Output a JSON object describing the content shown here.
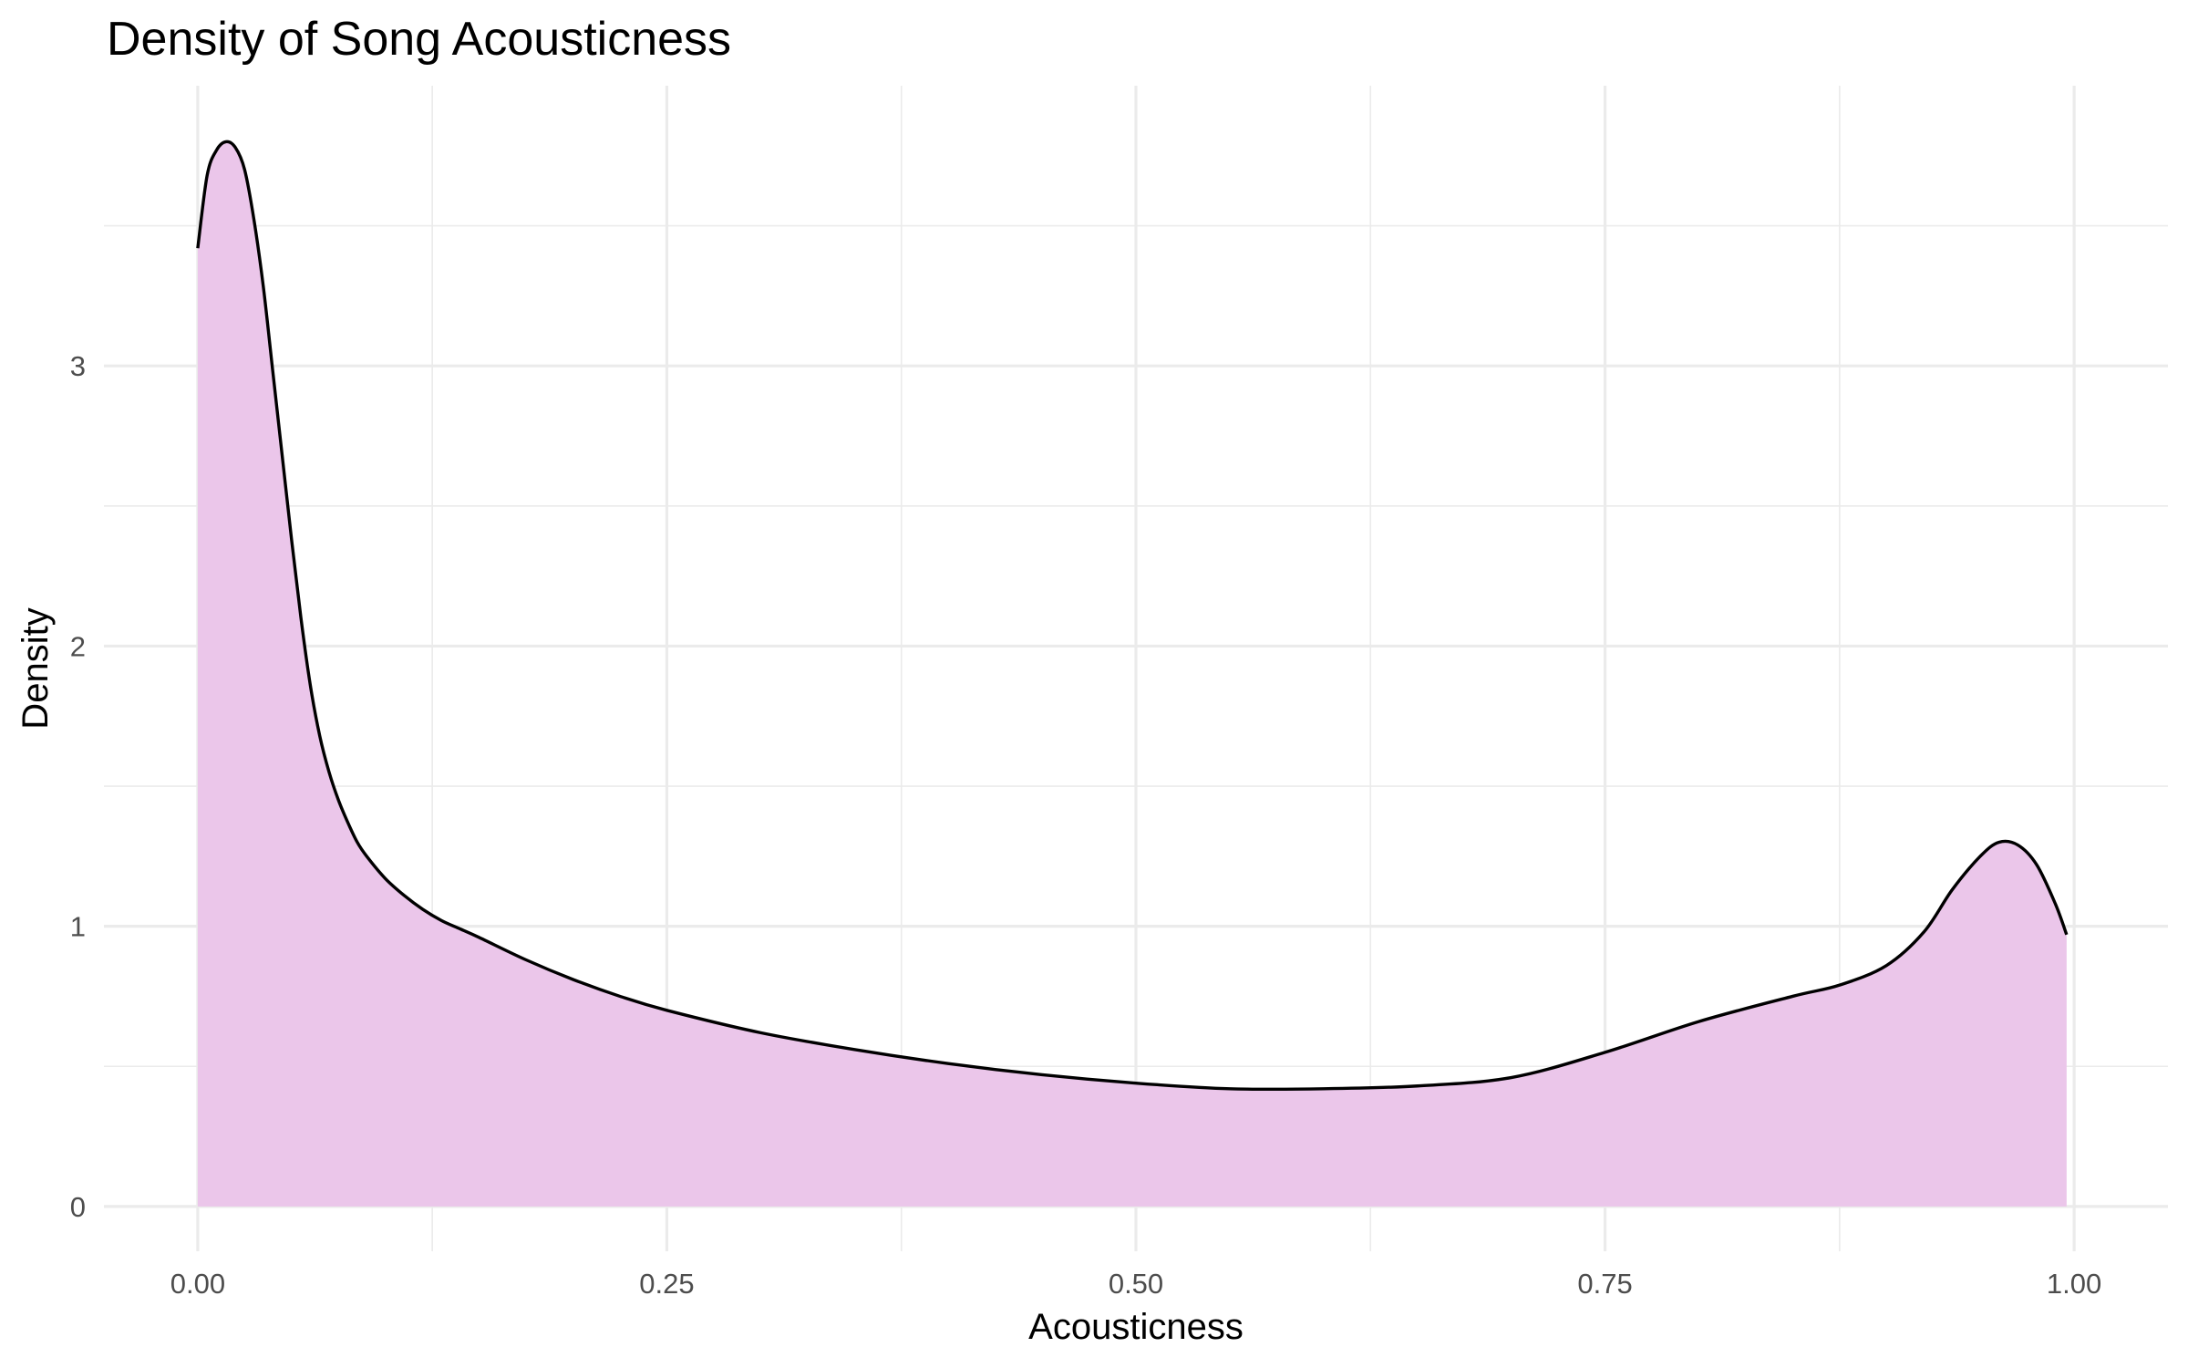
{
  "chart_data": {
    "type": "area",
    "title": "Density of Song Acousticness",
    "xlabel": "Acousticness",
    "ylabel": "Density",
    "xlim": [
      -0.05,
      1.05
    ],
    "ylim": [
      -0.16,
      4.0
    ],
    "x_ticks": [
      0.0,
      0.25,
      0.5,
      0.75,
      1.0
    ],
    "x_tick_labels": [
      "0.00",
      "0.25",
      "0.50",
      "0.75",
      "1.00"
    ],
    "x_minor_ticks": [
      0.125,
      0.375,
      0.625,
      0.875
    ],
    "y_ticks": [
      0,
      1,
      2,
      3
    ],
    "y_tick_labels": [
      "0",
      "1",
      "2",
      "3"
    ],
    "y_minor_ticks": [
      0.5,
      1.5,
      2.5,
      3.5
    ],
    "grid": true,
    "legend": "none",
    "fill_color": "#ebc6ea",
    "line_color": "#000000",
    "series": [
      {
        "x": [
          0.0,
          0.005,
          0.01,
          0.015,
          0.02,
          0.025,
          0.03,
          0.035,
          0.04,
          0.045,
          0.05,
          0.055,
          0.06,
          0.065,
          0.07,
          0.075,
          0.08,
          0.085,
          0.09,
          0.1,
          0.11,
          0.12,
          0.13,
          0.14,
          0.15,
          0.175,
          0.2,
          0.225,
          0.25,
          0.3,
          0.35,
          0.4,
          0.45,
          0.5,
          0.55,
          0.6,
          0.65,
          0.7,
          0.75,
          0.8,
          0.85,
          0.875,
          0.9,
          0.92,
          0.935,
          0.95,
          0.96,
          0.97,
          0.98,
          0.99,
          0.996
        ],
        "y": [
          3.42,
          3.68,
          3.77,
          3.8,
          3.78,
          3.7,
          3.52,
          3.28,
          2.98,
          2.68,
          2.38,
          2.1,
          1.86,
          1.68,
          1.55,
          1.45,
          1.37,
          1.3,
          1.25,
          1.17,
          1.11,
          1.06,
          1.02,
          0.99,
          0.96,
          0.88,
          0.81,
          0.75,
          0.7,
          0.62,
          0.56,
          0.51,
          0.47,
          0.44,
          0.42,
          0.42,
          0.43,
          0.46,
          0.55,
          0.66,
          0.75,
          0.79,
          0.86,
          0.98,
          1.13,
          1.25,
          1.3,
          1.29,
          1.22,
          1.08,
          0.97
        ]
      }
    ]
  }
}
